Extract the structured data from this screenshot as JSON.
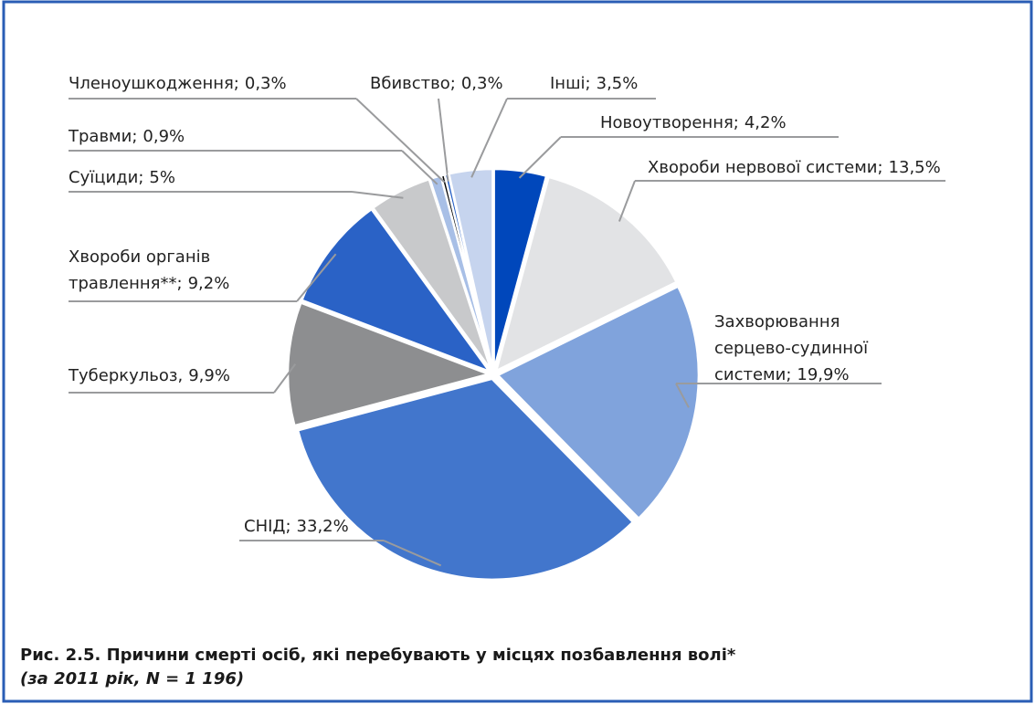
{
  "chart_data": {
    "type": "pie",
    "title": "Рис. 2.5. Причини смерті осіб, які перебувають у місцях позбавлення волі*",
    "subtitle": "(за 2011 рік, N = 1 196)",
    "categories": [
      "Новоутворення;",
      "Хвороби нервової системи;",
      "Захворювання\nсерцево-судинної\nсистеми;",
      "СНІД;",
      "Туберкульоз,",
      "Хвороби органів\nтравлення**;",
      "Суїциди;",
      "Травми;",
      "Членоушкодження;",
      "Вбивство;",
      "Інші;"
    ],
    "values": [
      4.2,
      13.5,
      19.9,
      33.2,
      9.9,
      9.2,
      5,
      0.9,
      0.3,
      0.3,
      3.5
    ],
    "value_labels": [
      "4,2%",
      "13,5%",
      "19,9%",
      "33,2%",
      "9,9%",
      "9,2%",
      "5%",
      "0,9%",
      "0,3%",
      "0,3%",
      "3,5%"
    ],
    "colors": [
      "#0047bb",
      "#e2e3e5",
      "#80a3dc",
      "#4276cc",
      "#8d8e90",
      "#2a62c6",
      "#c8c9cb",
      "#a8bfe6",
      "#000000",
      "#1f5bc4",
      "#c6d4ee"
    ]
  }
}
